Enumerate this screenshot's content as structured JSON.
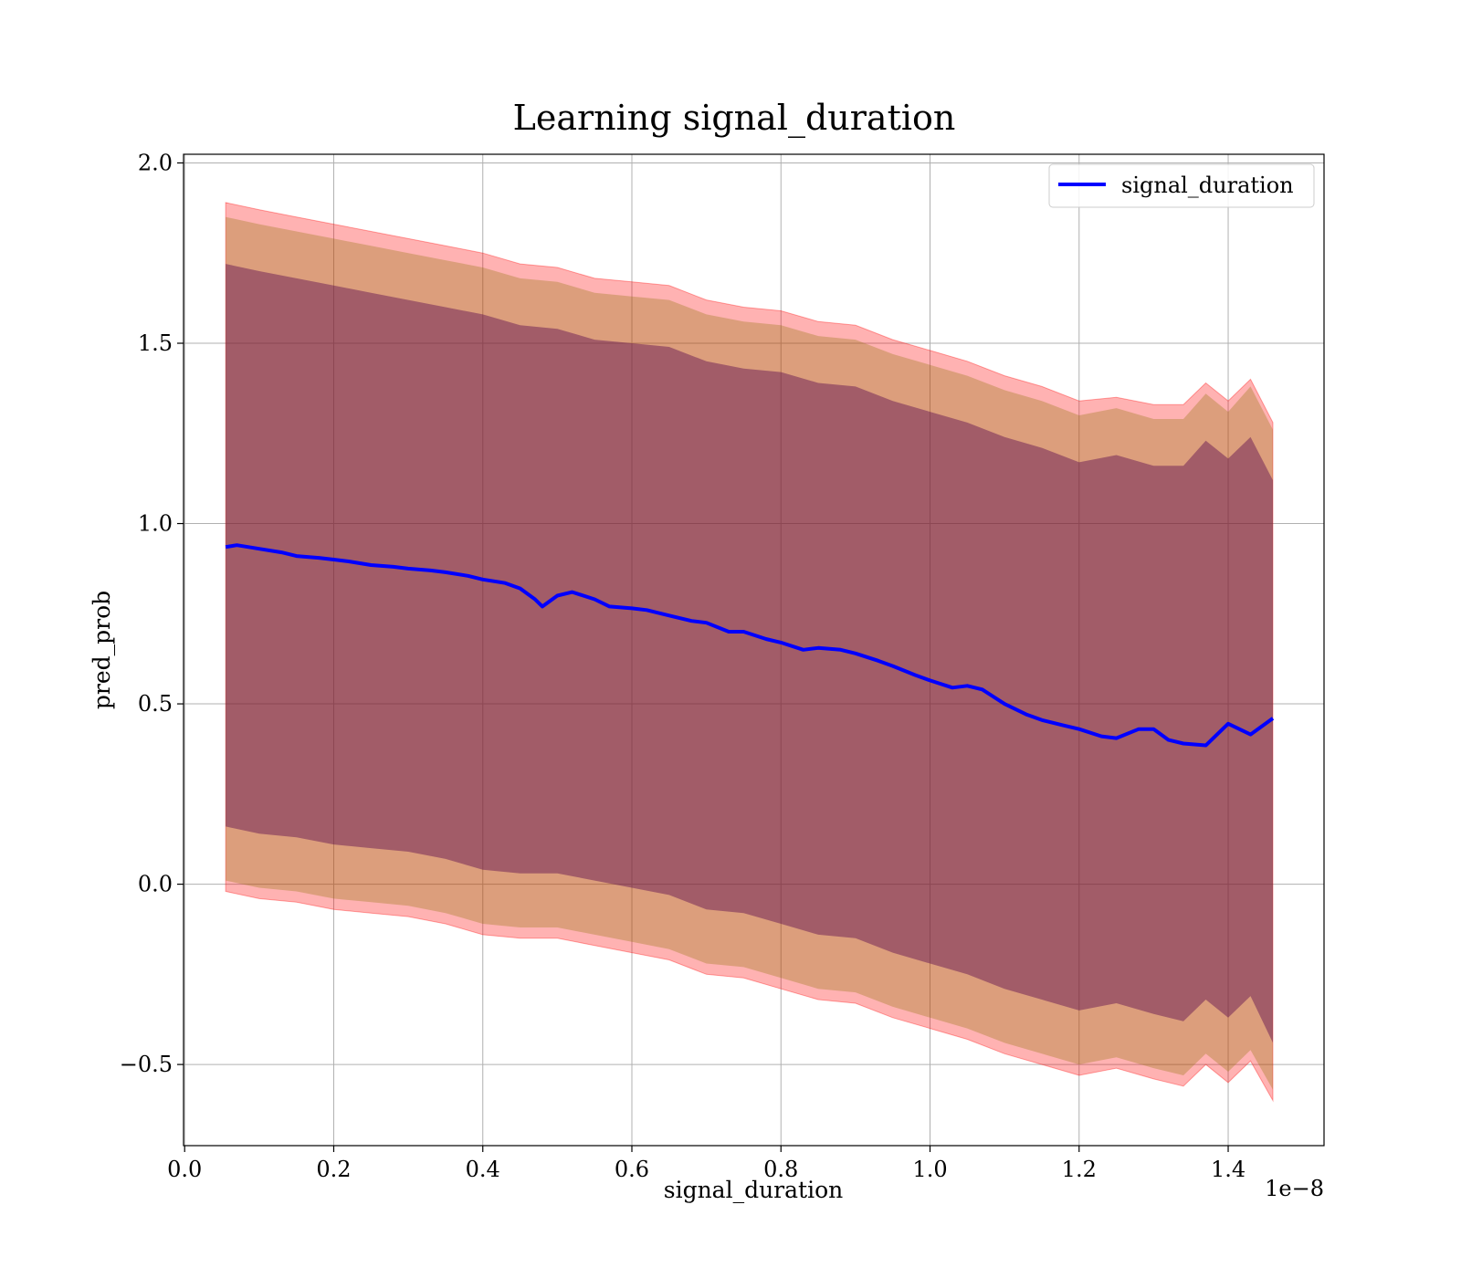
{
  "chart_data": {
    "type": "line",
    "title": "Learning signal_duration",
    "xlabel": "signal_duration",
    "ylabel": "pred_prob",
    "x_offset_label": "1e−8",
    "xlim": [
      -1.5e-11,
      1.5286e-08
    ],
    "ylim": [
      -0.725,
      2.024
    ],
    "x_ticks": [
      0,
      2e-09,
      4e-09,
      6e-09,
      8e-09,
      1e-08,
      1.2e-08,
      1.4e-08
    ],
    "x_tick_labels": [
      "0.0",
      "0.2",
      "0.4",
      "0.6",
      "0.8",
      "1.0",
      "1.2",
      "1.4"
    ],
    "y_ticks": [
      -0.5,
      0,
      0.5,
      1,
      1.5,
      2
    ],
    "y_tick_labels": [
      "−0.5",
      "0.0",
      "0.5",
      "1.0",
      "1.5",
      "2.0"
    ],
    "grid": true,
    "legend_position": "top-right",
    "colors": {
      "line": "#0000ff",
      "outer_band": "#ff0000",
      "middle_band": "#8b7000",
      "inner_band": "#5a0a50",
      "grid": "#b0b0b0"
    },
    "series": [
      {
        "name": "signal_duration",
        "x": [
          5.5e-10,
          7e-10,
          1e-09,
          1.3e-09,
          1.5e-09,
          1.8e-09,
          2e-09,
          2.2e-09,
          2.5e-09,
          2.8e-09,
          3e-09,
          3.3e-09,
          3.5e-09,
          3.8e-09,
          4e-09,
          4.3e-09,
          4.5e-09,
          4.7e-09,
          4.8e-09,
          5e-09,
          5.2e-09,
          5.5e-09,
          5.7e-09,
          6e-09,
          6.2e-09,
          6.5e-09,
          6.8e-09,
          7e-09,
          7.3e-09,
          7.5e-09,
          7.8e-09,
          8e-09,
          8.3e-09,
          8.5e-09,
          8.8e-09,
          9e-09,
          9.3e-09,
          9.5e-09,
          9.8e-09,
          1e-08,
          1.03e-08,
          1.05e-08,
          1.07e-08,
          1.1e-08,
          1.13e-08,
          1.15e-08,
          1.18e-08,
          1.2e-08,
          1.23e-08,
          1.25e-08,
          1.28e-08,
          1.3e-08,
          1.32e-08,
          1.34e-08,
          1.37e-08,
          1.4e-08,
          1.43e-08,
          1.46e-08
        ],
        "values": [
          0.935,
          0.94,
          0.93,
          0.92,
          0.91,
          0.905,
          0.9,
          0.895,
          0.885,
          0.88,
          0.875,
          0.87,
          0.865,
          0.855,
          0.845,
          0.835,
          0.82,
          0.79,
          0.77,
          0.8,
          0.81,
          0.79,
          0.77,
          0.765,
          0.76,
          0.745,
          0.73,
          0.725,
          0.7,
          0.7,
          0.68,
          0.67,
          0.65,
          0.655,
          0.65,
          0.64,
          0.62,
          0.605,
          0.58,
          0.565,
          0.545,
          0.55,
          0.54,
          0.5,
          0.47,
          0.455,
          0.44,
          0.43,
          0.41,
          0.405,
          0.43,
          0.43,
          0.4,
          0.39,
          0.385,
          0.445,
          0.415,
          0.46
        ]
      }
    ],
    "bands": {
      "x": [
        5.5e-10,
        1e-09,
        1.5e-09,
        2e-09,
        2.5e-09,
        3e-09,
        3.5e-09,
        4e-09,
        4.5e-09,
        5e-09,
        5.5e-09,
        6e-09,
        6.5e-09,
        7e-09,
        7.5e-09,
        8e-09,
        8.5e-09,
        9e-09,
        9.5e-09,
        1e-08,
        1.05e-08,
        1.1e-08,
        1.15e-08,
        1.2e-08,
        1.25e-08,
        1.3e-08,
        1.34e-08,
        1.37e-08,
        1.4e-08,
        1.43e-08,
        1.46e-08
      ],
      "outer_upper": [
        1.89,
        1.87,
        1.85,
        1.83,
        1.81,
        1.79,
        1.77,
        1.75,
        1.72,
        1.71,
        1.68,
        1.67,
        1.66,
        1.62,
        1.6,
        1.59,
        1.56,
        1.55,
        1.51,
        1.48,
        1.45,
        1.41,
        1.38,
        1.34,
        1.35,
        1.33,
        1.33,
        1.39,
        1.34,
        1.4,
        1.28
      ],
      "outer_lower": [
        -0.02,
        -0.04,
        -0.05,
        -0.07,
        -0.08,
        -0.09,
        -0.11,
        -0.14,
        -0.15,
        -0.15,
        -0.17,
        -0.19,
        -0.21,
        -0.25,
        -0.26,
        -0.29,
        -0.32,
        -0.33,
        -0.37,
        -0.4,
        -0.43,
        -0.47,
        -0.5,
        -0.53,
        -0.51,
        -0.54,
        -0.56,
        -0.5,
        -0.55,
        -0.49,
        -0.6
      ],
      "middle_upper": [
        1.85,
        1.83,
        1.81,
        1.79,
        1.77,
        1.75,
        1.73,
        1.71,
        1.68,
        1.67,
        1.64,
        1.63,
        1.62,
        1.58,
        1.56,
        1.55,
        1.52,
        1.51,
        1.47,
        1.44,
        1.41,
        1.37,
        1.34,
        1.3,
        1.32,
        1.29,
        1.29,
        1.36,
        1.31,
        1.38,
        1.26
      ],
      "middle_lower": [
        0.01,
        -0.01,
        -0.02,
        -0.04,
        -0.05,
        -0.06,
        -0.08,
        -0.11,
        -0.12,
        -0.12,
        -0.14,
        -0.16,
        -0.18,
        -0.22,
        -0.23,
        -0.26,
        -0.29,
        -0.3,
        -0.34,
        -0.37,
        -0.4,
        -0.44,
        -0.47,
        -0.5,
        -0.48,
        -0.51,
        -0.53,
        -0.47,
        -0.52,
        -0.46,
        -0.57
      ],
      "inner_upper": [
        1.72,
        1.7,
        1.68,
        1.66,
        1.64,
        1.62,
        1.6,
        1.58,
        1.55,
        1.54,
        1.51,
        1.5,
        1.49,
        1.45,
        1.43,
        1.42,
        1.39,
        1.38,
        1.34,
        1.31,
        1.28,
        1.24,
        1.21,
        1.17,
        1.19,
        1.16,
        1.16,
        1.23,
        1.18,
        1.24,
        1.12
      ],
      "inner_lower": [
        0.16,
        0.14,
        0.13,
        0.11,
        0.1,
        0.09,
        0.07,
        0.04,
        0.03,
        0.03,
        0.01,
        -0.01,
        -0.03,
        -0.07,
        -0.08,
        -0.11,
        -0.14,
        -0.15,
        -0.19,
        -0.22,
        -0.25,
        -0.29,
        -0.32,
        -0.35,
        -0.33,
        -0.36,
        -0.38,
        -0.32,
        -0.37,
        -0.31,
        -0.44
      ]
    }
  }
}
